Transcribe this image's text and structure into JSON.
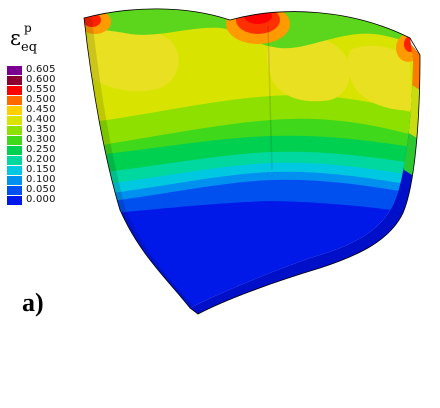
{
  "legend": {
    "symbol": "ε",
    "superscript": "p",
    "subscript": "eq",
    "levels": [
      {
        "label": "0.605",
        "color": "#7a0090"
      },
      {
        "label": "0.600",
        "color": "#8a0030"
      },
      {
        "label": "0.550",
        "color": "#ff0000"
      },
      {
        "label": "0.500",
        "color": "#ff6a00"
      },
      {
        "label": "0.450",
        "color": "#ffd000"
      },
      {
        "label": "0.400",
        "color": "#d8e400"
      },
      {
        "label": "0.350",
        "color": "#8ee000"
      },
      {
        "label": "0.300",
        "color": "#3fd81a"
      },
      {
        "label": "0.250",
        "color": "#00d050"
      },
      {
        "label": "0.200",
        "color": "#00d8a0"
      },
      {
        "label": "0.150",
        "color": "#00c8e0"
      },
      {
        "label": "0.100",
        "color": "#0090f0"
      },
      {
        "label": "0.050",
        "color": "#0050f0"
      },
      {
        "label": "0.000",
        "color": "#0018e8"
      }
    ]
  },
  "panel_label": "a)"
}
